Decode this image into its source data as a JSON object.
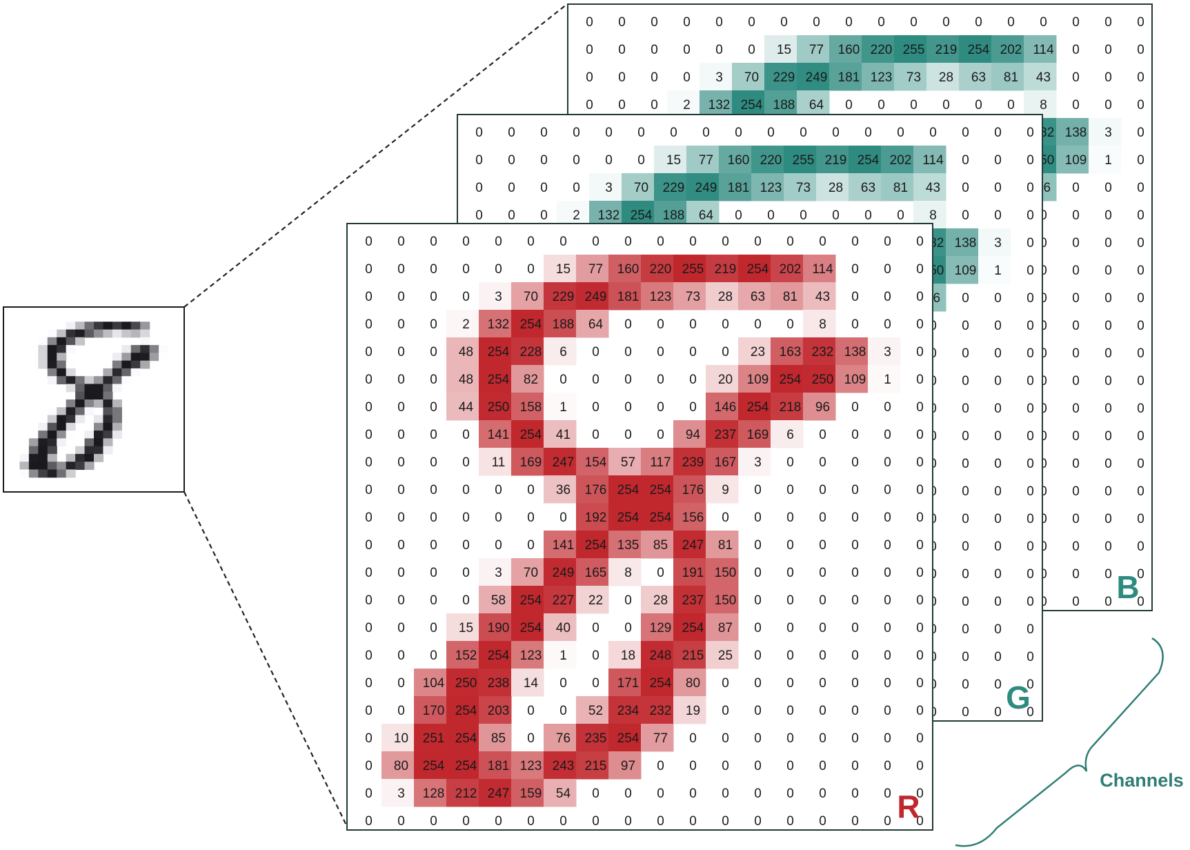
{
  "channels": [
    {
      "label": "B",
      "color": "#2e8b80"
    },
    {
      "label": "G",
      "color": "#2e8b80"
    },
    {
      "label": "R",
      "color": "#c0272d"
    }
  ],
  "brace_label": "Channels",
  "brace_color": "#2e7d74",
  "grid": [
    [
      0,
      0,
      0,
      0,
      0,
      0,
      0,
      0,
      0,
      0,
      0,
      0,
      0,
      0,
      0,
      0,
      0,
      0
    ],
    [
      0,
      0,
      0,
      0,
      0,
      0,
      15,
      77,
      160,
      220,
      255,
      219,
      254,
      202,
      114,
      0,
      0,
      0
    ],
    [
      0,
      0,
      0,
      0,
      3,
      70,
      229,
      249,
      181,
      123,
      73,
      28,
      63,
      81,
      43,
      0,
      0,
      0
    ],
    [
      0,
      0,
      0,
      2,
      132,
      254,
      188,
      64,
      0,
      0,
      0,
      0,
      0,
      0,
      8,
      0,
      0,
      0
    ],
    [
      0,
      0,
      0,
      48,
      254,
      228,
      6,
      0,
      0,
      0,
      0,
      0,
      23,
      163,
      232,
      138,
      3,
      0
    ],
    [
      0,
      0,
      0,
      48,
      254,
      82,
      0,
      0,
      0,
      0,
      0,
      20,
      109,
      254,
      250,
      109,
      1,
      0
    ],
    [
      0,
      0,
      0,
      44,
      250,
      158,
      1,
      0,
      0,
      0,
      0,
      146,
      254,
      218,
      96,
      0,
      0,
      0
    ],
    [
      0,
      0,
      0,
      0,
      141,
      254,
      41,
      0,
      0,
      0,
      94,
      237,
      169,
      6,
      0,
      0,
      0,
      0
    ],
    [
      0,
      0,
      0,
      0,
      11,
      169,
      247,
      154,
      57,
      117,
      239,
      167,
      3,
      0,
      0,
      0,
      0,
      0
    ],
    [
      0,
      0,
      0,
      0,
      0,
      0,
      36,
      176,
      254,
      254,
      176,
      9,
      0,
      0,
      0,
      0,
      0,
      0
    ],
    [
      0,
      0,
      0,
      0,
      0,
      0,
      0,
      192,
      254,
      254,
      156,
      0,
      0,
      0,
      0,
      0,
      0,
      0
    ],
    [
      0,
      0,
      0,
      0,
      0,
      0,
      141,
      254,
      135,
      85,
      247,
      81,
      0,
      0,
      0,
      0,
      0,
      0
    ],
    [
      0,
      0,
      0,
      0,
      3,
      70,
      249,
      165,
      8,
      0,
      191,
      150,
      0,
      0,
      0,
      0,
      0,
      0
    ],
    [
      0,
      0,
      0,
      0,
      58,
      254,
      227,
      22,
      0,
      28,
      237,
      150,
      0,
      0,
      0,
      0,
      0,
      0
    ],
    [
      0,
      0,
      0,
      15,
      190,
      254,
      40,
      0,
      0,
      129,
      254,
      87,
      0,
      0,
      0,
      0,
      0,
      0
    ],
    [
      0,
      0,
      0,
      152,
      254,
      123,
      1,
      0,
      18,
      248,
      215,
      25,
      0,
      0,
      0,
      0,
      0,
      0
    ],
    [
      0,
      0,
      104,
      250,
      238,
      14,
      0,
      0,
      171,
      254,
      80,
      0,
      0,
      0,
      0,
      0,
      0,
      0
    ],
    [
      0,
      0,
      170,
      254,
      203,
      0,
      0,
      52,
      234,
      232,
      19,
      0,
      0,
      0,
      0,
      0,
      0,
      0
    ],
    [
      0,
      10,
      251,
      254,
      85,
      0,
      76,
      235,
      254,
      77,
      0,
      0,
      0,
      0,
      0,
      0,
      0,
      0
    ],
    [
      0,
      80,
      254,
      254,
      181,
      123,
      243,
      215,
      97,
      0,
      0,
      0,
      0,
      0,
      0,
      0,
      0,
      0
    ],
    [
      0,
      3,
      128,
      212,
      247,
      159,
      54,
      0,
      0,
      0,
      0,
      0,
      0,
      0,
      0,
      0,
      0,
      0
    ],
    [
      0,
      0,
      0,
      0,
      0,
      0,
      0,
      0,
      0,
      0,
      0,
      0,
      0,
      0,
      0,
      0,
      0,
      0
    ]
  ]
}
